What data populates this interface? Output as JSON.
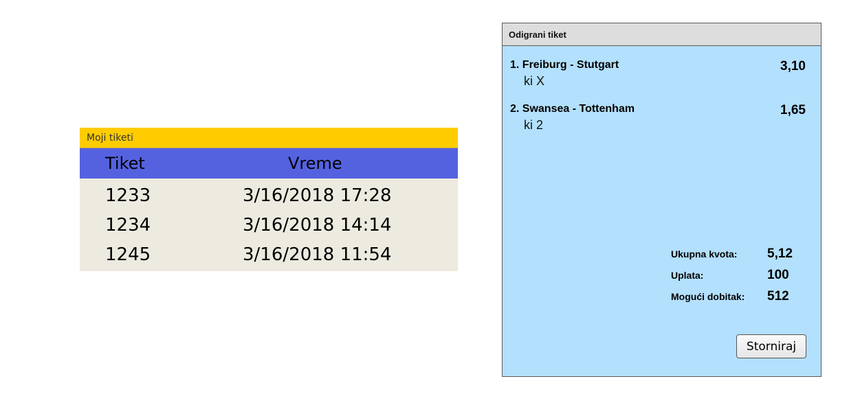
{
  "my_tickets": {
    "title": "Moji tiketi",
    "columns": [
      "Tiket",
      "Vreme"
    ],
    "rows": [
      {
        "ticket": "1233",
        "time": "3/16/2018 17:28"
      },
      {
        "ticket": "1234",
        "time": "3/16/2018 14:14"
      },
      {
        "ticket": "1245",
        "time": "3/16/2018 11:54"
      }
    ]
  },
  "played_ticket": {
    "title": "Odigrani tiket",
    "matches": [
      {
        "name": "1. Freiburg - Stutgart",
        "pick": "ki X",
        "odds": "3,10"
      },
      {
        "name": "2. Swansea - Tottenham",
        "pick": "ki 2",
        "odds": "1,65"
      }
    ],
    "summary": {
      "total_odds_label": "Ukupna kvota:",
      "total_odds": "5,12",
      "stake_label": "Uplata:",
      "stake": "100",
      "win_label": "Mogući dobitak:",
      "win": "512"
    },
    "cancel_label": "Storniraj"
  }
}
